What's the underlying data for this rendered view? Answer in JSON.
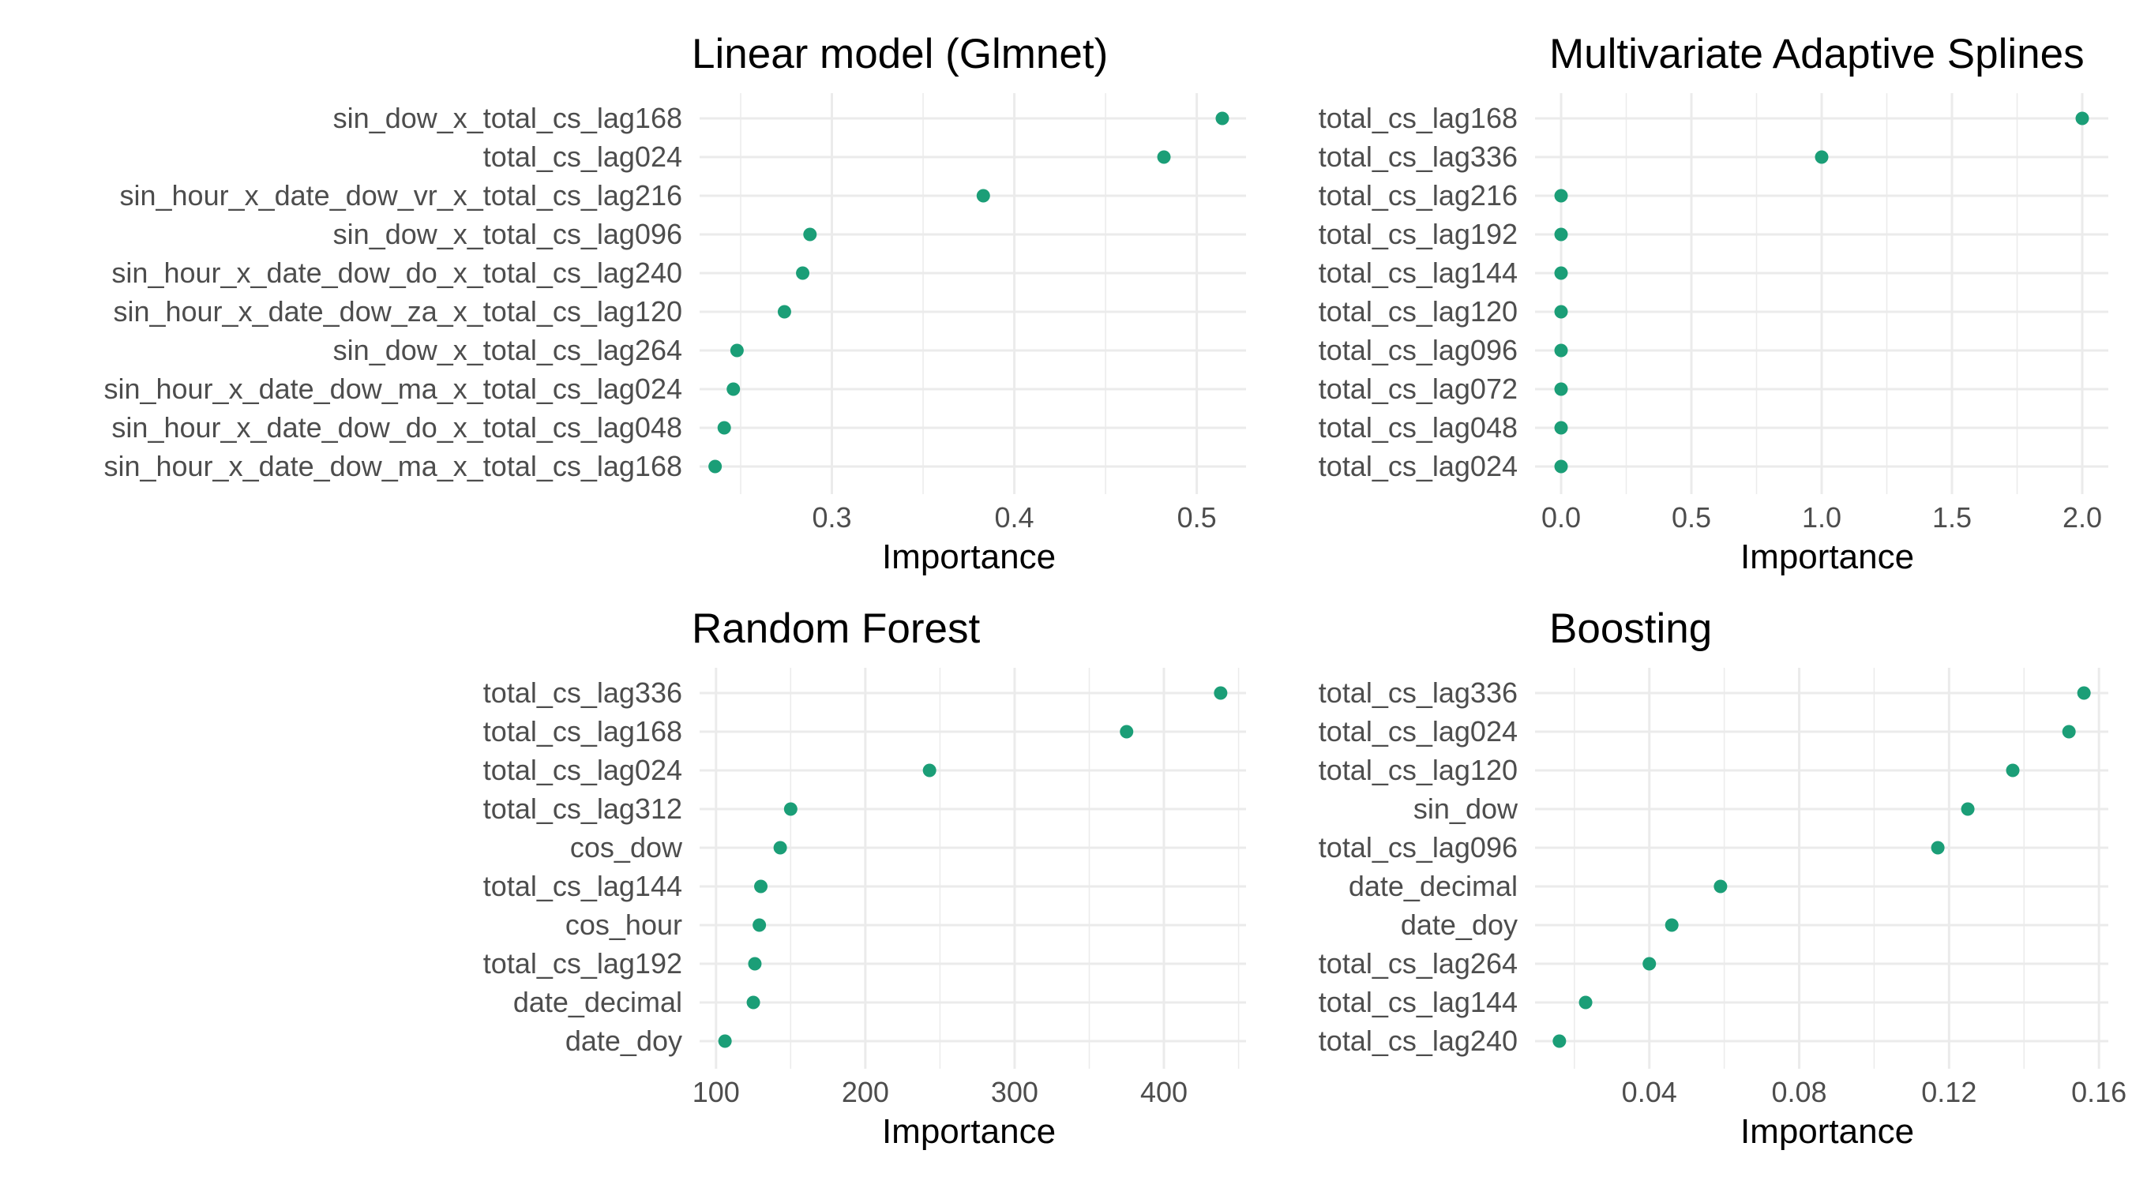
{
  "colors": {
    "point": "#1b9e77",
    "grid": "#ebebeb",
    "label": "#4d4d4d"
  },
  "chart_data": [
    {
      "type": "scatter",
      "title": "Linear model (Glmnet)",
      "xlabel": "Importance",
      "ylabel": "",
      "xlim": [
        0.2275,
        0.527
      ],
      "xticks": [
        0.3,
        0.4,
        0.5
      ],
      "xtick_labels": [
        "0.3",
        "0.4",
        "0.5"
      ],
      "categories": [
        "sin_dow_x_total_cs_lag168",
        "total_cs_lag024",
        "sin_hour_x_date_dow_vr_x_total_cs_lag216",
        "sin_dow_x_total_cs_lag096",
        "sin_hour_x_date_dow_do_x_total_cs_lag240",
        "sin_hour_x_date_dow_za_x_total_cs_lag120",
        "sin_dow_x_total_cs_lag264",
        "sin_hour_x_date_dow_ma_x_total_cs_lag024",
        "sin_hour_x_date_dow_do_x_total_cs_lag048",
        "sin_hour_x_date_dow_ma_x_total_cs_lag168"
      ],
      "values": [
        0.514,
        0.482,
        0.383,
        0.288,
        0.284,
        0.274,
        0.248,
        0.246,
        0.241,
        0.236
      ],
      "grid": true
    },
    {
      "type": "scatter",
      "title": "Multivariate Adaptive Splines",
      "xlabel": "Importance",
      "ylabel": "",
      "xlim": [
        -0.1,
        2.1
      ],
      "xticks": [
        0.0,
        0.5,
        1.0,
        1.5,
        2.0
      ],
      "xtick_labels": [
        "0.0",
        "0.5",
        "1.0",
        "1.5",
        "2.0"
      ],
      "categories": [
        "total_cs_lag168",
        "total_cs_lag336",
        "total_cs_lag216",
        "total_cs_lag192",
        "total_cs_lag144",
        "total_cs_lag120",
        "total_cs_lag096",
        "total_cs_lag072",
        "total_cs_lag048",
        "total_cs_lag024"
      ],
      "values": [
        2.0,
        1.0,
        0.0,
        0.0,
        0.0,
        0.0,
        0.0,
        0.0,
        0.0,
        0.0
      ],
      "grid": true
    },
    {
      "type": "scatter",
      "title": "Random Forest",
      "xlabel": "Importance",
      "ylabel": "",
      "xlim": [
        89,
        455
      ],
      "xticks": [
        100,
        200,
        300,
        400
      ],
      "xtick_labels": [
        "100",
        "200",
        "300",
        "400"
      ],
      "categories": [
        "total_cs_lag336",
        "total_cs_lag168",
        "total_cs_lag024",
        "total_cs_lag312",
        "cos_dow",
        "total_cs_lag144",
        "cos_hour",
        "total_cs_lag192",
        "date_decimal",
        "date_doy"
      ],
      "values": [
        438,
        375,
        243,
        150,
        143,
        130,
        129,
        126,
        125,
        106
      ],
      "grid": true
    },
    {
      "type": "scatter",
      "title": "Boosting",
      "xlabel": "Importance",
      "ylabel": "",
      "xlim": [
        0.0095,
        0.1625
      ],
      "xticks": [
        0.04,
        0.08,
        0.12,
        0.16
      ],
      "xtick_labels": [
        "0.04",
        "0.08",
        "0.12",
        "0.16"
      ],
      "categories": [
        "total_cs_lag336",
        "total_cs_lag024",
        "total_cs_lag120",
        "sin_dow",
        "total_cs_lag096",
        "date_decimal",
        "date_doy",
        "total_cs_lag264",
        "total_cs_lag144",
        "total_cs_lag240"
      ],
      "values": [
        0.156,
        0.152,
        0.137,
        0.125,
        0.117,
        0.059,
        0.046,
        0.04,
        0.023,
        0.016
      ],
      "grid": true
    }
  ]
}
